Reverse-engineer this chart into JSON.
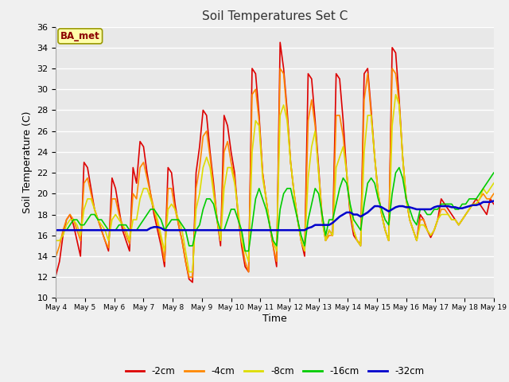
{
  "title": "Soil Temperatures Set C",
  "xlabel": "Time",
  "ylabel": "Soil Temperature (C)",
  "ylim": [
    10,
    36
  ],
  "annotation": "BA_met",
  "fig_bg": "#f0f0f0",
  "plot_bg": "#e8e8e8",
  "series_colors": {
    "-2cm": "#dd0000",
    "-4cm": "#ff8800",
    "-8cm": "#dddd00",
    "-16cm": "#00cc00",
    "-32cm": "#0000cc"
  },
  "tick_labels": [
    "May 4",
    "May 5",
    "May 6",
    "May 7",
    "May 8",
    "May 9",
    "May 10",
    "May 11",
    "May 12",
    "May 13",
    "May 14",
    "May 15",
    "May 16",
    "May 17",
    "May 18",
    "May 19"
  ],
  "data_2cm": [
    12.2,
    13.5,
    16.0,
    17.5,
    18.0,
    17.0,
    15.5,
    14.0,
    23.0,
    22.5,
    20.5,
    18.5,
    17.5,
    16.5,
    15.5,
    14.5,
    21.5,
    20.5,
    18.5,
    16.5,
    15.5,
    14.5,
    22.5,
    21.0,
    25.0,
    24.5,
    22.0,
    20.0,
    18.0,
    16.5,
    15.0,
    13.0,
    22.5,
    22.0,
    19.0,
    17.0,
    15.5,
    13.5,
    11.8,
    11.5,
    22.0,
    24.5,
    28.0,
    27.5,
    24.0,
    21.0,
    17.5,
    15.0,
    27.5,
    26.5,
    24.0,
    22.0,
    18.0,
    15.0,
    13.0,
    12.5,
    32.0,
    31.5,
    27.5,
    22.0,
    19.5,
    17.0,
    15.0,
    13.0,
    34.5,
    32.0,
    28.0,
    23.0,
    20.0,
    17.5,
    15.5,
    14.0,
    31.5,
    31.0,
    27.0,
    22.5,
    17.5,
    15.5,
    16.5,
    16.0,
    31.5,
    31.0,
    27.0,
    22.0,
    18.0,
    16.0,
    15.5,
    15.0,
    31.5,
    32.0,
    28.0,
    23.5,
    20.0,
    18.0,
    16.5,
    15.5,
    34.0,
    33.5,
    29.0,
    23.5,
    19.5,
    17.5,
    16.5,
    15.5,
    18.0,
    17.5,
    16.5,
    15.8,
    16.5,
    17.5,
    19.5,
    19.0,
    18.5,
    18.0,
    17.5,
    17.0,
    17.5,
    18.0,
    18.5,
    19.0,
    19.5,
    19.0,
    18.5,
    18.0,
    19.5,
    19.0
  ],
  "data_4cm": [
    14.0,
    15.0,
    16.5,
    17.5,
    18.0,
    17.5,
    16.5,
    15.5,
    21.0,
    21.5,
    20.0,
    18.5,
    17.5,
    16.5,
    15.5,
    14.8,
    19.5,
    19.5,
    18.0,
    17.0,
    16.0,
    15.2,
    20.0,
    19.5,
    22.5,
    23.0,
    21.5,
    20.0,
    18.5,
    17.0,
    15.5,
    13.5,
    20.5,
    20.5,
    18.5,
    17.0,
    15.5,
    13.5,
    12.0,
    12.0,
    20.5,
    22.5,
    25.5,
    26.0,
    23.5,
    20.5,
    17.5,
    15.5,
    24.0,
    25.0,
    23.0,
    21.5,
    18.0,
    15.5,
    13.5,
    12.5,
    29.5,
    30.0,
    27.0,
    22.0,
    19.5,
    17.0,
    15.0,
    13.5,
    32.0,
    31.5,
    27.5,
    23.0,
    20.0,
    17.5,
    15.5,
    14.5,
    27.0,
    29.0,
    26.5,
    22.0,
    18.0,
    15.5,
    16.0,
    16.0,
    27.5,
    27.5,
    25.5,
    22.0,
    18.5,
    16.5,
    15.5,
    15.2,
    29.0,
    31.5,
    27.5,
    23.5,
    20.0,
    18.0,
    16.5,
    15.5,
    32.0,
    31.5,
    28.5,
    23.5,
    19.5,
    17.5,
    16.5,
    15.5,
    17.5,
    17.5,
    16.5,
    16.0,
    16.5,
    17.5,
    18.5,
    18.5,
    18.0,
    17.5,
    17.5,
    17.0,
    17.5,
    18.0,
    18.5,
    19.0,
    19.0,
    19.5,
    20.0,
    19.5,
    19.5,
    20.0
  ],
  "data_8cm": [
    15.5,
    15.5,
    16.0,
    17.0,
    17.5,
    17.5,
    17.0,
    16.0,
    18.5,
    19.5,
    19.5,
    18.5,
    17.5,
    17.0,
    16.5,
    15.5,
    17.5,
    18.0,
    17.5,
    17.0,
    16.5,
    15.5,
    17.5,
    17.5,
    19.5,
    20.5,
    20.5,
    19.5,
    18.5,
    17.5,
    16.0,
    14.5,
    18.5,
    19.0,
    18.5,
    17.5,
    16.5,
    14.5,
    12.5,
    12.5,
    18.5,
    20.0,
    22.5,
    23.5,
    22.5,
    20.0,
    17.5,
    15.5,
    20.5,
    22.5,
    22.5,
    21.0,
    18.5,
    15.5,
    14.5,
    13.5,
    24.0,
    27.0,
    26.5,
    21.5,
    19.5,
    17.0,
    15.5,
    14.5,
    27.5,
    28.5,
    27.0,
    23.0,
    20.0,
    17.5,
    15.5,
    14.5,
    21.5,
    24.5,
    26.0,
    22.0,
    17.5,
    15.5,
    16.5,
    16.0,
    22.5,
    23.5,
    24.5,
    22.0,
    18.5,
    16.5,
    15.5,
    15.0,
    24.0,
    27.5,
    27.5,
    23.5,
    20.0,
    18.0,
    16.5,
    15.5,
    26.5,
    29.5,
    28.5,
    23.5,
    19.5,
    17.5,
    16.5,
    15.5,
    17.0,
    17.0,
    16.5,
    16.0,
    16.5,
    17.5,
    18.0,
    18.0,
    18.0,
    17.5,
    17.5,
    17.0,
    17.5,
    18.0,
    18.5,
    19.0,
    19.0,
    19.5,
    20.5,
    20.0,
    20.5,
    21.0
  ],
  "data_16cm": [
    16.5,
    16.5,
    16.5,
    16.5,
    17.0,
    17.5,
    17.5,
    17.0,
    17.0,
    17.5,
    18.0,
    18.0,
    17.5,
    17.5,
    17.0,
    16.5,
    16.5,
    16.5,
    17.0,
    17.0,
    17.0,
    16.5,
    16.5,
    16.5,
    17.0,
    17.5,
    18.0,
    18.5,
    18.5,
    18.0,
    17.5,
    16.5,
    17.0,
    17.5,
    17.5,
    17.5,
    17.0,
    16.5,
    15.0,
    15.0,
    16.5,
    17.0,
    18.5,
    19.5,
    19.5,
    19.0,
    17.5,
    16.5,
    16.5,
    17.5,
    18.5,
    18.5,
    17.5,
    16.5,
    14.5,
    14.5,
    17.0,
    19.5,
    20.5,
    19.5,
    18.5,
    17.0,
    15.5,
    15.0,
    18.5,
    20.0,
    20.5,
    20.5,
    19.0,
    17.5,
    16.0,
    15.0,
    17.5,
    19.0,
    20.5,
    20.0,
    18.0,
    16.0,
    17.5,
    17.5,
    19.0,
    20.5,
    21.5,
    21.0,
    19.0,
    17.5,
    17.0,
    16.5,
    19.0,
    21.0,
    21.5,
    21.0,
    19.5,
    18.5,
    17.5,
    17.0,
    20.0,
    22.0,
    22.5,
    21.5,
    19.5,
    18.5,
    17.5,
    17.0,
    18.5,
    18.5,
    18.0,
    18.0,
    18.5,
    18.5,
    19.0,
    19.0,
    19.0,
    19.0,
    18.5,
    18.5,
    19.0,
    19.0,
    19.5,
    19.5,
    19.5,
    20.0,
    20.5,
    21.0,
    21.5,
    22.0
  ],
  "data_32cm": [
    16.5,
    16.5,
    16.5,
    16.5,
    16.5,
    16.5,
    16.5,
    16.5,
    16.5,
    16.5,
    16.5,
    16.5,
    16.5,
    16.5,
    16.5,
    16.5,
    16.5,
    16.5,
    16.5,
    16.5,
    16.5,
    16.5,
    16.5,
    16.5,
    16.5,
    16.5,
    16.5,
    16.7,
    16.8,
    16.8,
    16.7,
    16.5,
    16.5,
    16.5,
    16.5,
    16.5,
    16.5,
    16.5,
    16.5,
    16.5,
    16.5,
    16.5,
    16.5,
    16.5,
    16.5,
    16.5,
    16.5,
    16.5,
    16.5,
    16.5,
    16.5,
    16.5,
    16.5,
    16.5,
    16.5,
    16.5,
    16.5,
    16.5,
    16.5,
    16.5,
    16.5,
    16.5,
    16.5,
    16.5,
    16.5,
    16.5,
    16.5,
    16.5,
    16.5,
    16.5,
    16.5,
    16.5,
    16.7,
    16.8,
    17.0,
    17.0,
    17.0,
    17.0,
    17.0,
    17.2,
    17.5,
    17.8,
    18.0,
    18.2,
    18.2,
    18.0,
    18.0,
    17.8,
    18.0,
    18.2,
    18.5,
    18.8,
    18.8,
    18.7,
    18.5,
    18.3,
    18.5,
    18.7,
    18.8,
    18.8,
    18.7,
    18.7,
    18.6,
    18.5,
    18.5,
    18.5,
    18.5,
    18.5,
    18.7,
    18.8,
    18.8,
    18.8,
    18.8,
    18.7,
    18.7,
    18.6,
    18.6,
    18.7,
    18.8,
    18.9,
    18.9,
    19.0,
    19.2,
    19.2,
    19.2,
    19.3
  ]
}
